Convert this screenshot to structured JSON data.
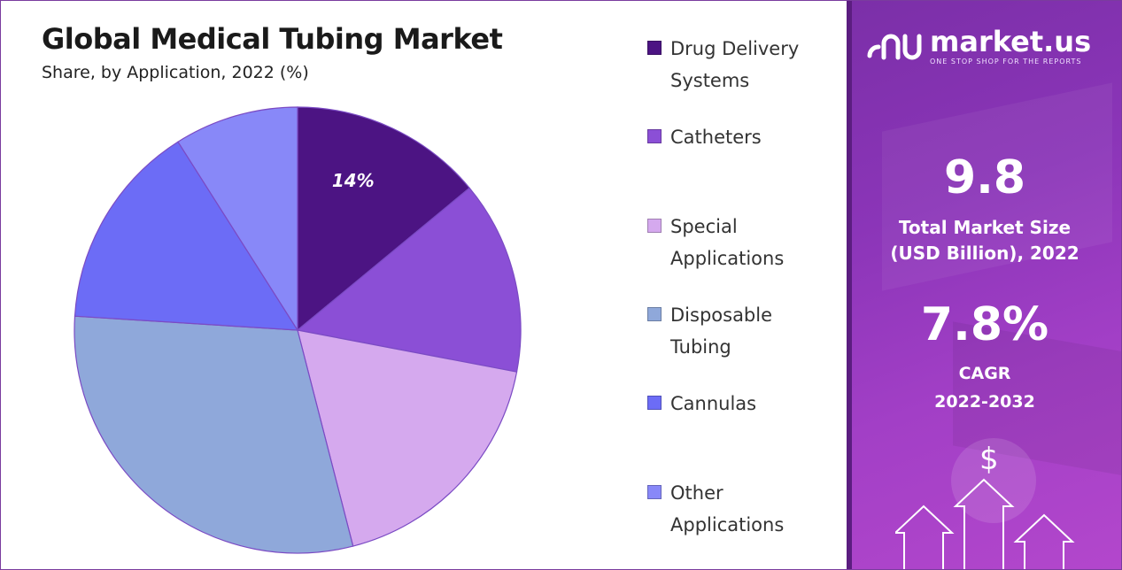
{
  "title": "Global Medical Tubing Market",
  "subtitle": "Share, by Application, 2022 (%)",
  "chart_data": {
    "type": "pie",
    "title": "Global Medical Tubing Market",
    "subtitle": "Share, by Application, 2022 (%)",
    "start_angle_deg": 0,
    "direction": "clockwise",
    "legend_position": "right",
    "slices": [
      {
        "label": "Drug Delivery Systems",
        "value": 14,
        "color": "#4c1483",
        "data_label": "14%"
      },
      {
        "label": "Catheters",
        "value": 14,
        "color": "#8b4fd6",
        "data_label": ""
      },
      {
        "label": "Special Applications",
        "value": 18,
        "color": "#d5a9ee",
        "data_label": ""
      },
      {
        "label": "Disposable Tubing",
        "value": 30,
        "color": "#8fa8da",
        "data_label": ""
      },
      {
        "label": "Cannulas",
        "value": 15,
        "color": "#6c6cf6",
        "data_label": ""
      },
      {
        "label": "Other Applications",
        "value": 9,
        "color": "#8888f8",
        "data_label": ""
      }
    ]
  },
  "legend": [
    {
      "line1": "Drug Delivery",
      "line2": "Systems",
      "color": "#4c1483"
    },
    {
      "line1": "Catheters",
      "line2": "",
      "color": "#8b4fd6"
    },
    {
      "line1": "Special",
      "line2": "Applications",
      "color": "#d5a9ee"
    },
    {
      "line1": "Disposable",
      "line2": "Tubing",
      "color": "#8fa8da"
    },
    {
      "line1": "Cannulas",
      "line2": "",
      "color": "#6c6cf6"
    },
    {
      "line1": "Other",
      "line2": "Applications",
      "color": "#8888f8"
    }
  ],
  "panel": {
    "brand": "market.us",
    "tagline": "ONE STOP SHOP FOR THE REPORTS",
    "market_size_value": "9.8",
    "market_size_label_1": "Total Market Size",
    "market_size_label_2": "(USD Billion), 2022",
    "cagr_value": "7.8%",
    "cagr_label_1": "CAGR",
    "cagr_label_2": "2022-2032",
    "currency_symbol": "$"
  }
}
